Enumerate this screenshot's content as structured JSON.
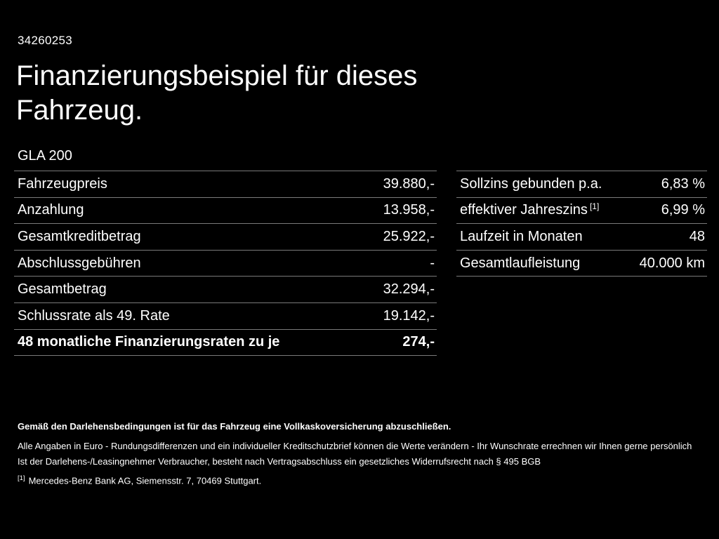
{
  "colors": {
    "background": "#000000",
    "text": "#ffffff",
    "divider": "#7a7a7a"
  },
  "page": {
    "id": "34260253",
    "title": "Finanzierungsbeispiel für dieses Fahrzeug.",
    "model": "GLA 200"
  },
  "left_table": {
    "rows": [
      {
        "label": "Fahrzeugpreis",
        "value": "39.880,-"
      },
      {
        "label": "Anzahlung",
        "value": "13.958,-"
      },
      {
        "label": "Gesamtkreditbetrag",
        "value": "25.922,-"
      },
      {
        "label": "Abschlussgebühren",
        "value": "-"
      },
      {
        "label": "Gesamtbetrag",
        "value": "32.294,-"
      },
      {
        "label": "Schlussrate als 49. Rate",
        "value": "19.142,-"
      },
      {
        "label": "48 monatliche Finanzierungsraten zu je",
        "value": "274,-"
      }
    ]
  },
  "right_table": {
    "rows": [
      {
        "label": "Sollzins gebunden p.a.",
        "sup": "",
        "value": "6,83 %"
      },
      {
        "label": "effektiver Jahreszins",
        "sup": "[1]",
        "value": "6,99 %"
      },
      {
        "label": "Laufzeit in Monaten",
        "sup": "",
        "value": "48"
      },
      {
        "label": "Gesamtlaufleistung",
        "sup": "",
        "value": "40.000 km"
      }
    ]
  },
  "footer": {
    "bold_line": "Gemäß den Darlehensbedingungen ist für das Fahrzeug eine Vollkaskoversicherung abzuschließen.",
    "line1": "Alle Angaben in Euro - Rundungsdifferenzen und ein individueller Kreditschutzbrief können die Werte verändern - Ihr Wunschrate errechnen wir Ihnen gerne persönlich",
    "line2": "Ist der Darlehens-/Leasingnehmer Verbraucher, besteht nach Vertragsabschluss ein gesetzliches Widerrufsrecht nach § 495 BGB",
    "ref_marker": "[1]",
    "ref_text": "Mercedes-Benz Bank AG, Siemensstr. 7, 70469 Stuttgart."
  }
}
